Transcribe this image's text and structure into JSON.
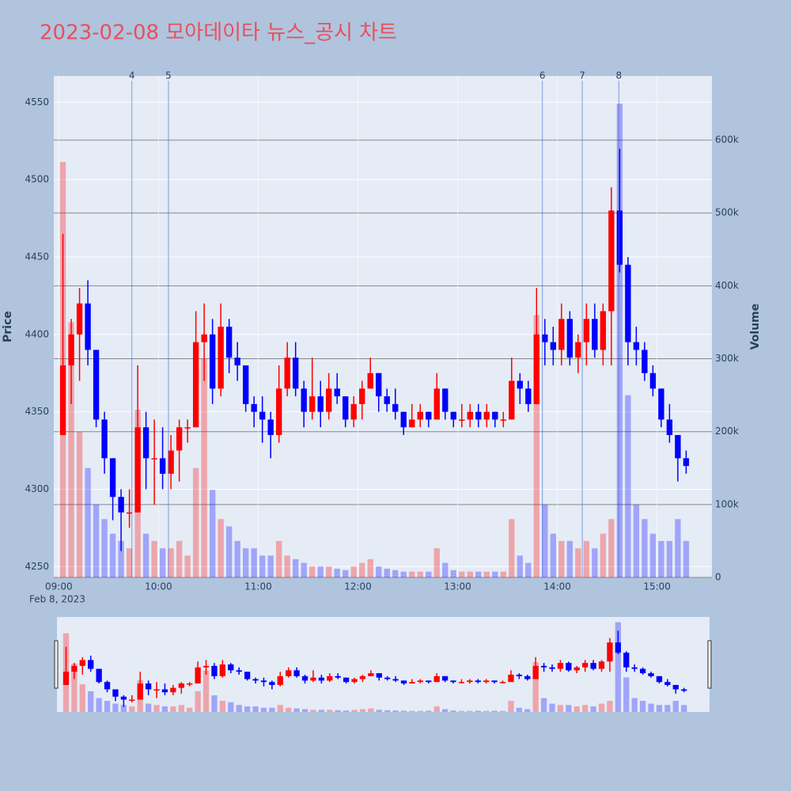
{
  "chart_data": {
    "type": "candlestick",
    "title": "2023-02-08 모아데이타 뉴스_공시 차트",
    "y_title": "Price",
    "y2_title": "Volume",
    "x_date_label": "Feb 8, 2023",
    "increasing_color": "#ff0000",
    "decreasing_color": "#0000ff",
    "xlim": [
      "08:57",
      "15:33"
    ],
    "xticks": [
      "09:00",
      "10:00",
      "11:00",
      "12:00",
      "13:00",
      "14:00",
      "15:00"
    ],
    "ylim": [
      4243,
      4567
    ],
    "yticks": [
      4250,
      4300,
      4350,
      4400,
      4450,
      4500,
      4550
    ],
    "y2lim": [
      0,
      688000
    ],
    "y2ticks": [
      0,
      {
        "value": 100000,
        "label": "100k"
      },
      {
        "value": 200000,
        "label": "200k"
      },
      {
        "value": 300000,
        "label": "300k"
      },
      {
        "value": 400000,
        "label": "400k"
      },
      {
        "value": 500000,
        "label": "500k"
      },
      {
        "value": 600000,
        "label": "600k"
      }
    ],
    "annotations": [
      {
        "x": "09:44",
        "label": "4"
      },
      {
        "x": "10:06",
        "label": "5"
      },
      {
        "x": "13:51",
        "label": "6"
      },
      {
        "x": "14:15",
        "label": "7"
      },
      {
        "x": "14:37",
        "label": "8"
      }
    ],
    "x": [
      "09:00",
      "09:05",
      "09:10",
      "09:15",
      "09:20",
      "09:25",
      "09:30",
      "09:35",
      "09:40",
      "09:45",
      "09:50",
      "09:55",
      "10:00",
      "10:05",
      "10:10",
      "10:15",
      "10:20",
      "10:25",
      "10:30",
      "10:35",
      "10:40",
      "10:45",
      "10:50",
      "10:55",
      "11:00",
      "11:05",
      "11:10",
      "11:15",
      "11:20",
      "11:25",
      "11:30",
      "11:35",
      "11:40",
      "11:45",
      "11:50",
      "11:55",
      "12:00",
      "12:05",
      "12:10",
      "12:15",
      "12:20",
      "12:25",
      "12:30",
      "12:35",
      "12:40",
      "12:45",
      "12:50",
      "12:55",
      "13:00",
      "13:05",
      "13:10",
      "13:15",
      "13:20",
      "13:25",
      "13:30",
      "13:35",
      "13:40",
      "13:45",
      "13:50",
      "13:55",
      "14:00",
      "14:05",
      "14:10",
      "14:15",
      "14:20",
      "14:25",
      "14:30",
      "14:35",
      "14:40",
      "14:45",
      "14:50",
      "14:55",
      "15:00",
      "15:05",
      "15:10",
      "15:15"
    ],
    "open": [
      4335,
      4380,
      4400,
      4420,
      4390,
      4345,
      4320,
      4295,
      4285,
      4285,
      4340,
      4320,
      4320,
      4310,
      4325,
      4340,
      4340,
      4395,
      4400,
      4365,
      4405,
      4385,
      4380,
      4355,
      4350,
      4345,
      4335,
      4365,
      4385,
      4365,
      4350,
      4360,
      4350,
      4365,
      4360,
      4345,
      4355,
      4365,
      4375,
      4360,
      4355,
      4350,
      4340,
      4345,
      4350,
      4345,
      4365,
      4350,
      4345,
      4345,
      4350,
      4345,
      4350,
      4345,
      4345,
      4370,
      4365,
      4355,
      4400,
      4395,
      4390,
      4410,
      4385,
      4395,
      4410,
      4390,
      4415,
      4480,
      4445,
      4395,
      4390,
      4375,
      4365,
      4345,
      4335,
      4320
    ],
    "high": [
      4465,
      4410,
      4430,
      4435,
      4390,
      4350,
      4320,
      4300,
      4300,
      4380,
      4350,
      4345,
      4340,
      4335,
      4345,
      4345,
      4415,
      4420,
      4410,
      4420,
      4410,
      4395,
      4380,
      4360,
      4360,
      4350,
      4380,
      4395,
      4395,
      4370,
      4385,
      4370,
      4375,
      4375,
      4360,
      4360,
      4370,
      4385,
      4375,
      4365,
      4365,
      4350,
      4355,
      4355,
      4350,
      4375,
      4365,
      4350,
      4355,
      4355,
      4355,
      4355,
      4350,
      4350,
      4385,
      4375,
      4370,
      4430,
      4410,
      4405,
      4420,
      4415,
      4400,
      4420,
      4420,
      4420,
      4495,
      4520,
      4450,
      4405,
      4395,
      4380,
      4365,
      4355,
      4335,
      4325
    ],
    "low": [
      4335,
      4355,
      4370,
      4380,
      4340,
      4310,
      4280,
      4260,
      4275,
      4285,
      4300,
      4290,
      4300,
      4300,
      4305,
      4330,
      4340,
      4370,
      4355,
      4360,
      4375,
      4370,
      4350,
      4340,
      4330,
      4320,
      4330,
      4360,
      4360,
      4340,
      4345,
      4340,
      4345,
      4355,
      4340,
      4340,
      4345,
      4365,
      4350,
      4350,
      4345,
      4335,
      4340,
      4340,
      4340,
      4345,
      4345,
      4340,
      4340,
      4340,
      4340,
      4340,
      4340,
      4340,
      4345,
      4355,
      4350,
      4355,
      4380,
      4380,
      4380,
      4380,
      4375,
      4380,
      4385,
      4380,
      4380,
      4440,
      4380,
      4380,
      4370,
      4360,
      4340,
      4330,
      4305,
      4310
    ],
    "close": [
      4380,
      4400,
      4420,
      4390,
      4345,
      4320,
      4295,
      4285,
      4285,
      4340,
      4320,
      4320,
      4310,
      4325,
      4340,
      4340,
      4395,
      4400,
      4365,
      4405,
      4385,
      4380,
      4355,
      4350,
      4345,
      4335,
      4365,
      4385,
      4365,
      4350,
      4360,
      4350,
      4365,
      4360,
      4345,
      4355,
      4365,
      4375,
      4360,
      4355,
      4350,
      4340,
      4345,
      4350,
      4345,
      4365,
      4350,
      4345,
      4345,
      4350,
      4345,
      4350,
      4345,
      4345,
      4370,
      4365,
      4355,
      4400,
      4395,
      4390,
      4410,
      4385,
      4395,
      4410,
      4390,
      4415,
      4480,
      4445,
      4395,
      4390,
      4375,
      4365,
      4345,
      4335,
      4320,
      4315
    ],
    "volume": [
      570000,
      350000,
      200000,
      150000,
      100000,
      80000,
      60000,
      50000,
      40000,
      230000,
      60000,
      50000,
      40000,
      40000,
      50000,
      30000,
      150000,
      300000,
      120000,
      80000,
      70000,
      50000,
      40000,
      40000,
      30000,
      30000,
      50000,
      30000,
      25000,
      20000,
      15000,
      15000,
      15000,
      12000,
      10000,
      15000,
      20000,
      25000,
      15000,
      12000,
      10000,
      8000,
      8000,
      8000,
      8000,
      40000,
      20000,
      10000,
      8000,
      8000,
      8000,
      8000,
      8000,
      8000,
      80000,
      30000,
      20000,
      360000,
      100000,
      60000,
      50000,
      50000,
      40000,
      50000,
      40000,
      60000,
      80000,
      650000,
      250000,
      100000,
      80000,
      60000,
      50000,
      50000,
      80000,
      50000
    ]
  }
}
